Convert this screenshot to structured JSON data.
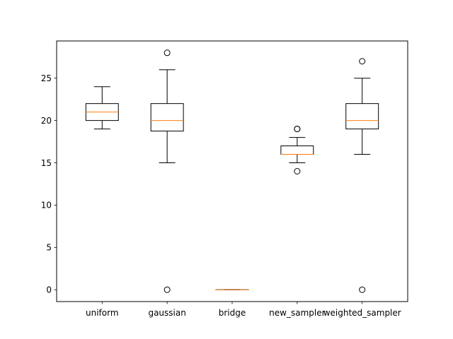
{
  "chart_data": {
    "type": "box",
    "title": "",
    "xlabel": "",
    "ylabel": "",
    "ylim": [
      -1.4,
      29.4
    ],
    "yticks": [
      0,
      5,
      10,
      15,
      20,
      25
    ],
    "grid": false,
    "categories": [
      "uniform",
      "gaussian",
      "bridge",
      "new_sampler",
      "weighted_sampler"
    ],
    "boxes": [
      {
        "category": "uniform",
        "whisker_low": 19,
        "q1": 20,
        "median": 21,
        "q3": 22,
        "whisker_high": 24,
        "outliers": []
      },
      {
        "category": "gaussian",
        "whisker_low": 15,
        "q1": 18.75,
        "median": 20,
        "q3": 22,
        "whisker_high": 26,
        "outliers": [
          28,
          0
        ]
      },
      {
        "category": "bridge",
        "whisker_low": 0,
        "q1": 0,
        "median": 0,
        "q3": 0,
        "whisker_high": 0,
        "outliers": []
      },
      {
        "category": "new_sampler",
        "whisker_low": 15,
        "q1": 16,
        "median": 16,
        "q3": 17,
        "whisker_high": 18,
        "outliers": [
          19,
          19,
          14
        ]
      },
      {
        "category": "weighted_sampler",
        "whisker_low": 16,
        "q1": 19,
        "median": 20,
        "q3": 22,
        "whisker_high": 25,
        "outliers": [
          27,
          0
        ]
      }
    ],
    "colors": {
      "box": "#000000",
      "median": "#ff7f0e",
      "outlier": "#000000"
    }
  }
}
